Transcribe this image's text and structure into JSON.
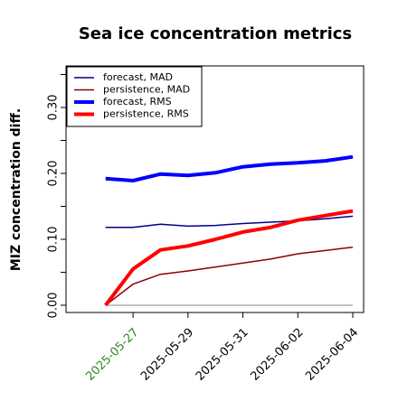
{
  "chart_data": {
    "type": "line",
    "title": "Sea ice concentration metrics",
    "y_label": "MIZ concentration diff.",
    "x": [
      "2025-05-26",
      "2025-05-27",
      "2025-05-28",
      "2025-05-29",
      "2025-05-30",
      "2025-05-31",
      "2025-06-01",
      "2025-06-02",
      "2025-06-03",
      "2025-06-04"
    ],
    "xlim": [
      "2025-05-24T13:25",
      "2025-06-04T09:30"
    ],
    "xticks": [
      "2025-05-27",
      "2025-05-29",
      "2025-05-31",
      "2025-06-02",
      "2025-06-04"
    ],
    "xtick_label_colors": [
      "#2e8b20",
      "#000000",
      "#000000",
      "#000000",
      "#000000"
    ],
    "ylim": [
      -0.011,
      0.363
    ],
    "yticks": [
      {
        "value": 0,
        "label": "0.00"
      },
      {
        "value": 0.1,
        "label": "0.10"
      },
      {
        "value": 0.2,
        "label": "0.20"
      },
      {
        "value": 0.3,
        "label": "0.30"
      }
    ],
    "yminorticks": [
      0.05,
      0.15,
      0.25,
      0.35
    ],
    "reference_line": 0,
    "reference_color": "#888888",
    "legend": "top-left",
    "series": [
      {
        "name": "forecast,  MAD",
        "color": "#00008b",
        "linewidth": 1.5,
        "values": [
          0.118,
          0.118,
          0.123,
          0.12,
          0.121,
          0.124,
          0.126,
          0.128,
          0.131,
          0.135
        ]
      },
      {
        "name": "persistence, MAD",
        "color": "#8b0000",
        "linewidth": 1.5,
        "values": [
          0,
          0.032,
          0.047,
          0.052,
          0.058,
          0.064,
          0.07,
          0.078,
          0.083,
          0.088
        ]
      },
      {
        "name": "forecast,  RMS",
        "color": "#0000ff",
        "linewidth": 4,
        "values": [
          0.192,
          0.189,
          0.199,
          0.197,
          0.201,
          0.21,
          0.214,
          0.216,
          0.219,
          0.225
        ]
      },
      {
        "name": "persistence, RMS",
        "color": "#ff0000",
        "linewidth": 4,
        "values": [
          0,
          0.055,
          0.084,
          0.09,
          0.1,
          0.111,
          0.118,
          0.129,
          0.136,
          0.143
        ]
      }
    ]
  }
}
